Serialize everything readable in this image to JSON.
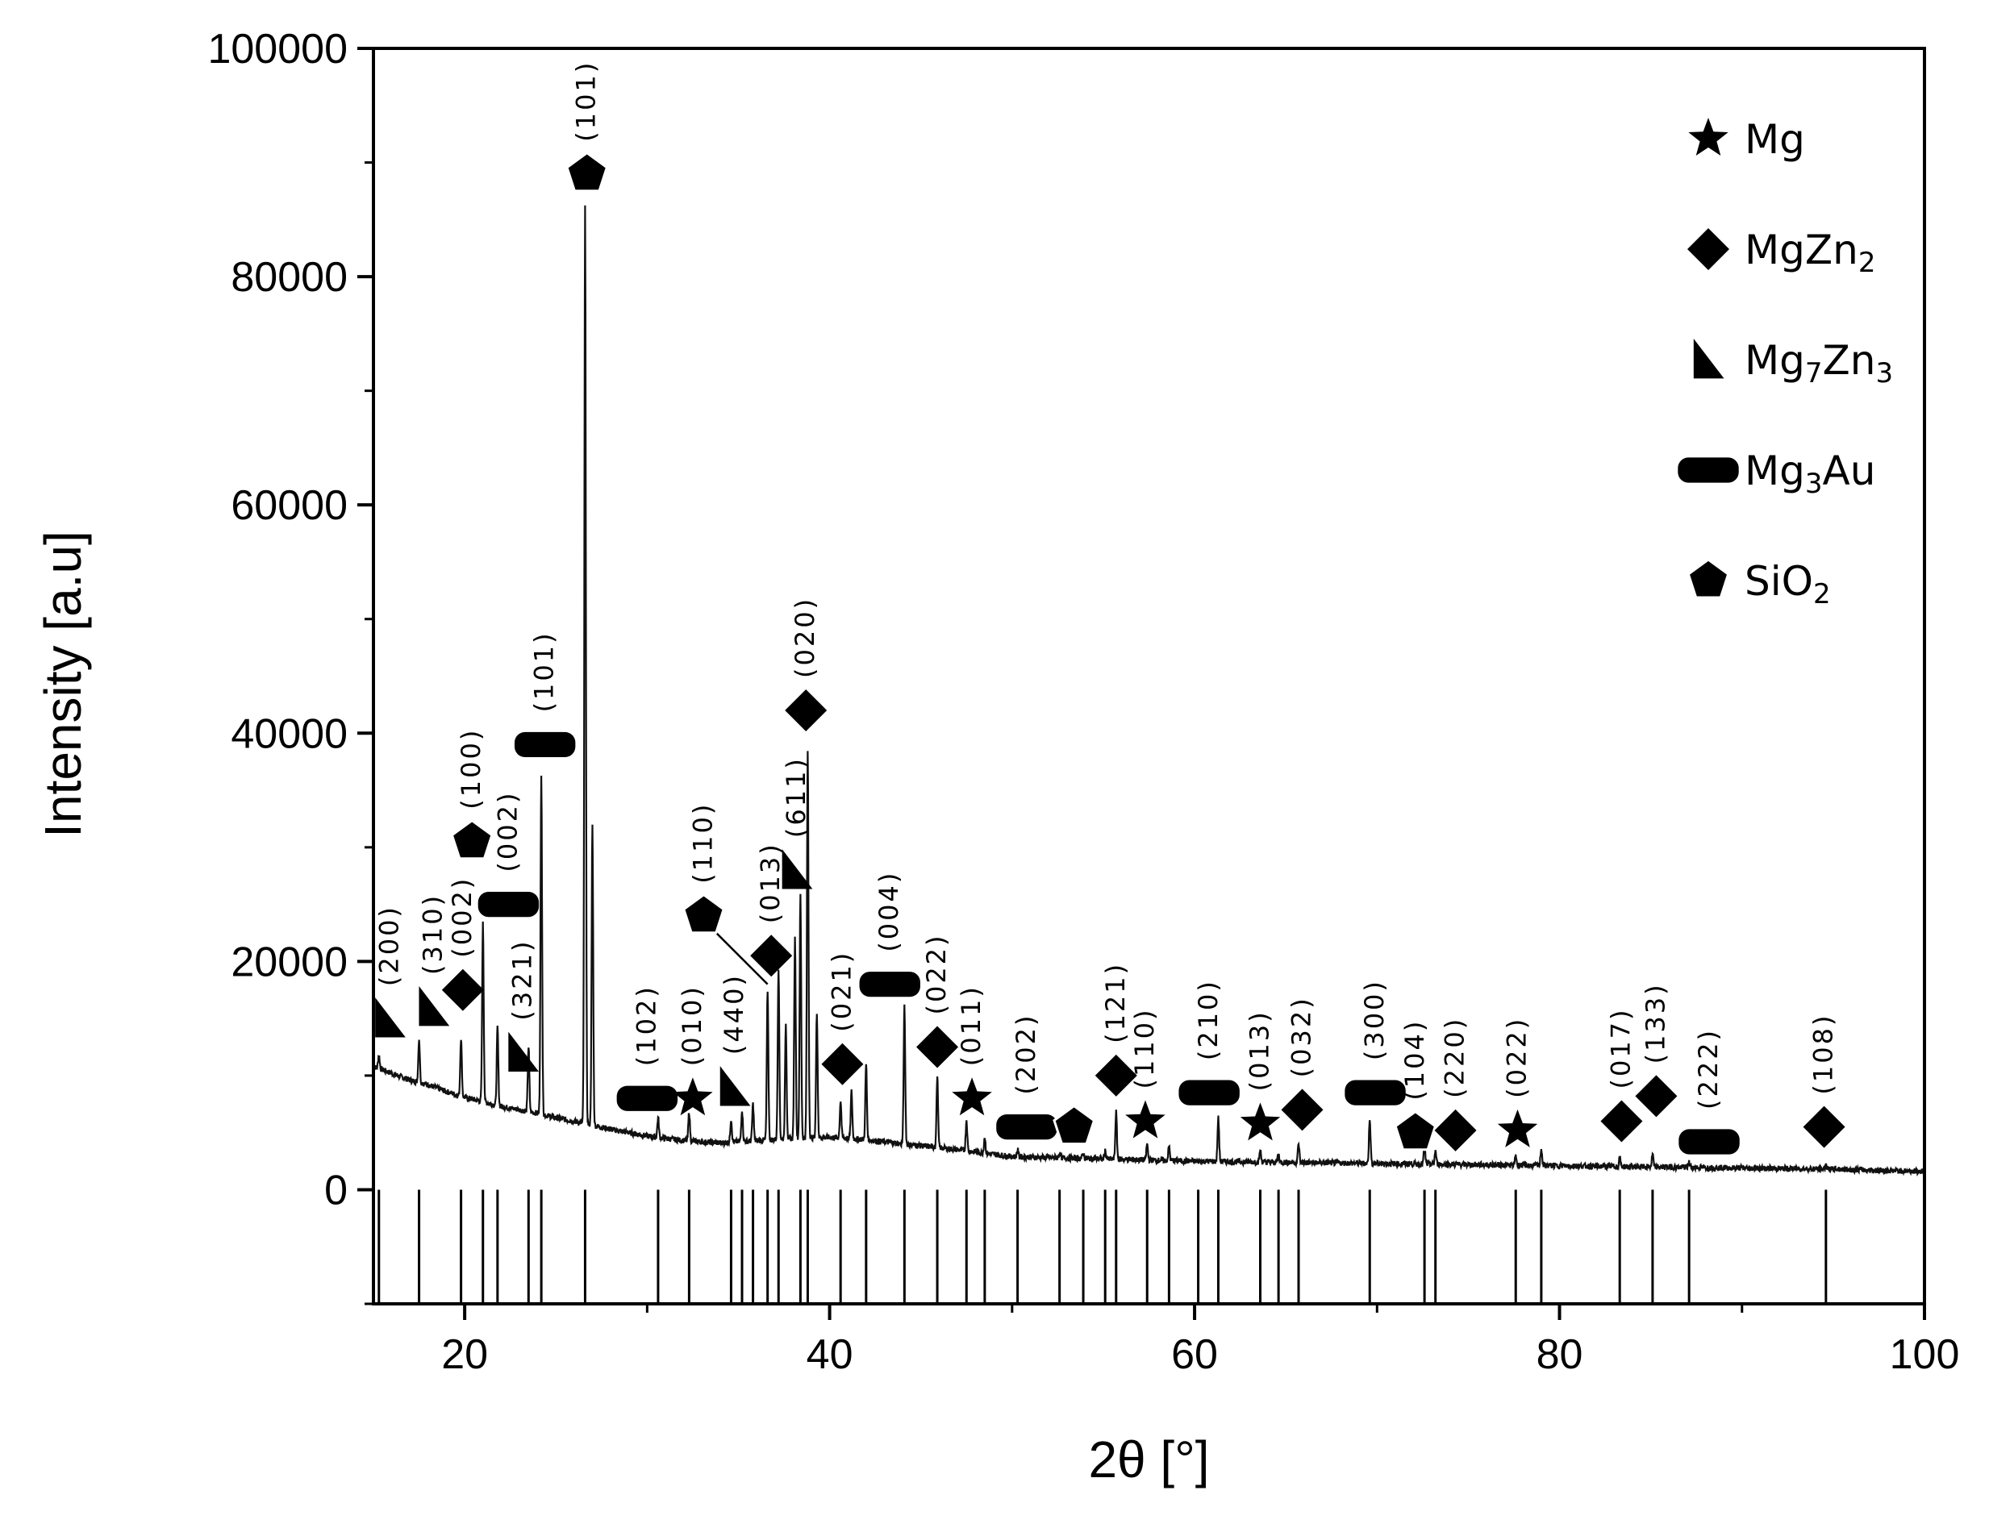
{
  "chart_data": {
    "type": "line",
    "xlabel": "2θ [°]",
    "ylabel": "Intensity [a.u]",
    "xlim": [
      15,
      100
    ],
    "ylim": [
      -10000,
      100000
    ],
    "x_ticks": [
      "20",
      "40",
      "60",
      "80",
      "100"
    ],
    "y_ticks": [
      "0",
      "20000",
      "40000",
      "60000",
      "80000",
      "100000"
    ],
    "grid": false,
    "legend_position": "top-right",
    "legend": [
      {
        "phase": "Mg",
        "base": "Mg",
        "sub": "",
        "tail": "",
        "marker": "star-icon"
      },
      {
        "phase": "MgZn2",
        "base": "MgZn",
        "sub": "2",
        "tail": "",
        "marker": "diamond-icon"
      },
      {
        "phase": "Mg7Zn3",
        "base": "Mg",
        "sub": "7",
        "tail": "Zn",
        "sub2": "3",
        "marker": "right-triangle-icon"
      },
      {
        "phase": "Mg3Au",
        "base": "Mg",
        "sub": "3",
        "tail": "Au",
        "marker": "rounded-rect-icon"
      },
      {
        "phase": "SiO2",
        "base": "SiO",
        "sub": "2",
        "tail": "",
        "marker": "pentagon-icon"
      }
    ],
    "pattern_profile": [
      [
        15.0,
        10800
      ],
      [
        16.0,
        10200
      ],
      [
        17.0,
        9600
      ],
      [
        18.0,
        9200
      ],
      [
        19.0,
        8600
      ],
      [
        20.0,
        8100
      ],
      [
        21.0,
        7700
      ],
      [
        22.0,
        7300
      ],
      [
        23.0,
        7000
      ],
      [
        24.0,
        6700
      ],
      [
        25.0,
        6300
      ],
      [
        26.0,
        6000
      ],
      [
        28.0,
        5300
      ],
      [
        30.0,
        4700
      ],
      [
        32.0,
        4300
      ],
      [
        34.0,
        4100
      ],
      [
        36.0,
        4300
      ],
      [
        38.0,
        4500
      ],
      [
        40.0,
        4600
      ],
      [
        42.0,
        4400
      ],
      [
        44.0,
        4000
      ],
      [
        46.0,
        3700
      ],
      [
        48.0,
        3300
      ],
      [
        50.0,
        2900
      ],
      [
        55.0,
        2700
      ],
      [
        60.0,
        2500
      ],
      [
        65.0,
        2400
      ],
      [
        70.0,
        2300
      ],
      [
        75.0,
        2200
      ],
      [
        80.0,
        2100
      ],
      [
        85.0,
        2000
      ],
      [
        90.0,
        1900
      ],
      [
        95.0,
        1800
      ],
      [
        100.0,
        1600
      ]
    ],
    "pattern_peaks": [
      [
        15.3,
        11800
      ],
      [
        17.5,
        13200
      ],
      [
        19.8,
        13300
      ],
      [
        21.0,
        23300
      ],
      [
        21.8,
        14200
      ],
      [
        23.5,
        12500
      ],
      [
        24.2,
        36200
      ],
      [
        26.6,
        86000
      ],
      [
        27.0,
        32000
      ],
      [
        30.6,
        6300
      ],
      [
        32.3,
        6800
      ],
      [
        34.6,
        6200
      ],
      [
        35.2,
        7000
      ],
      [
        35.8,
        7500
      ],
      [
        36.6,
        17500
      ],
      [
        37.2,
        19500
      ],
      [
        37.6,
        14500
      ],
      [
        38.1,
        22000
      ],
      [
        38.4,
        25800
      ],
      [
        38.8,
        38500
      ],
      [
        39.3,
        15500
      ],
      [
        40.6,
        7800
      ],
      [
        41.2,
        8600
      ],
      [
        42.0,
        11000
      ],
      [
        44.1,
        16000
      ],
      [
        45.9,
        9900
      ],
      [
        47.5,
        6100
      ],
      [
        48.5,
        4600
      ],
      [
        50.3,
        3500
      ],
      [
        52.6,
        3200
      ],
      [
        53.9,
        3200
      ],
      [
        55.1,
        3400
      ],
      [
        55.7,
        6800
      ],
      [
        57.4,
        4000
      ],
      [
        58.6,
        3800
      ],
      [
        61.3,
        6300
      ],
      [
        63.6,
        3400
      ],
      [
        64.6,
        3100
      ],
      [
        65.7,
        4000
      ],
      [
        69.6,
        6300
      ],
      [
        72.6,
        3800
      ],
      [
        73.2,
        3400
      ],
      [
        77.6,
        3000
      ],
      [
        79.0,
        3600
      ],
      [
        83.3,
        2800
      ],
      [
        85.1,
        3100
      ],
      [
        87.1,
        2400
      ],
      [
        94.6,
        2200
      ]
    ],
    "reference_lines_2theta": [
      15.3,
      17.5,
      19.8,
      21.0,
      21.8,
      23.5,
      24.2,
      26.6,
      30.6,
      32.3,
      34.6,
      35.2,
      35.8,
      36.6,
      37.2,
      38.4,
      38.8,
      40.6,
      42.0,
      44.1,
      45.9,
      47.5,
      48.5,
      50.3,
      52.6,
      53.9,
      55.1,
      55.7,
      57.4,
      58.6,
      60.2,
      61.3,
      63.6,
      64.6,
      65.7,
      69.6,
      72.6,
      73.2,
      77.6,
      79.0,
      83.3,
      85.1,
      87.1,
      94.6
    ],
    "peak_annotations": [
      {
        "two_theta": 15.9,
        "marker_y": 15000,
        "phase": "Mg7Zn3",
        "hkl": "(200)"
      },
      {
        "two_theta": 18.3,
        "marker_y": 16000,
        "phase": "Mg7Zn3",
        "hkl": "(310)"
      },
      {
        "two_theta": 19.9,
        "marker_y": 17500,
        "phase": "MgZn2",
        "hkl": "(002)"
      },
      {
        "two_theta": 20.4,
        "marker_y": 30500,
        "phase": "SiO2",
        "hkl": "(100)"
      },
      {
        "two_theta": 22.4,
        "marker_y": 25000,
        "phase": "Mg3Au",
        "hkl": "(002)"
      },
      {
        "two_theta": 23.2,
        "marker_y": 12000,
        "phase": "Mg7Zn3",
        "hkl": "(321)"
      },
      {
        "two_theta": 24.4,
        "marker_y": 39000,
        "phase": "Mg3Au",
        "hkl": "(101)"
      },
      {
        "two_theta": 26.7,
        "marker_y": 89000,
        "phase": "SiO2",
        "hkl": "(101)"
      },
      {
        "two_theta": 30.0,
        "marker_y": 8000,
        "phase": "Mg3Au",
        "hkl": "(102)"
      },
      {
        "two_theta": 32.5,
        "marker_y": 8000,
        "phase": "Mg",
        "hkl": "(010)"
      },
      {
        "two_theta": 34.8,
        "marker_y": 9000,
        "phase": "Mg7Zn3",
        "hkl": "(440)"
      },
      {
        "two_theta": 33.1,
        "marker_y": 24000,
        "phase": "SiO2",
        "hkl": "(110)"
      },
      {
        "two_theta": 36.8,
        "marker_y": 20500,
        "phase": "MgZn2",
        "hkl": "(013)"
      },
      {
        "two_theta": 38.2,
        "marker_y": 28000,
        "phase": "Mg7Zn3",
        "hkl": "(611)"
      },
      {
        "two_theta": 38.7,
        "marker_y": 42000,
        "phase": "MgZn2",
        "hkl": "(020)"
      },
      {
        "two_theta": 40.7,
        "marker_y": 11000,
        "phase": "MgZn2",
        "hkl": "(021)"
      },
      {
        "two_theta": 43.3,
        "marker_y": 18000,
        "phase": "Mg3Au",
        "hkl": "(004)"
      },
      {
        "two_theta": 45.9,
        "marker_y": 12500,
        "phase": "MgZn2",
        "hkl": "(022)"
      },
      {
        "two_theta": 47.8,
        "marker_y": 8000,
        "phase": "Mg",
        "hkl": "(011)"
      },
      {
        "two_theta": 50.8,
        "marker_y": 5500,
        "phase": "Mg3Au",
        "hkl": "(202)"
      },
      {
        "two_theta": 53.4,
        "marker_y": 5500,
        "phase": "SiO2",
        "hkl": ""
      },
      {
        "two_theta": 55.7,
        "marker_y": 10000,
        "phase": "MgZn2",
        "hkl": "(121)"
      },
      {
        "two_theta": 57.3,
        "marker_y": 6000,
        "phase": "Mg",
        "hkl": "(110)"
      },
      {
        "two_theta": 60.8,
        "marker_y": 8500,
        "phase": "Mg3Au",
        "hkl": "(210)"
      },
      {
        "two_theta": 63.6,
        "marker_y": 5800,
        "phase": "Mg",
        "hkl": "(013)"
      },
      {
        "two_theta": 65.9,
        "marker_y": 7000,
        "phase": "MgZn2",
        "hkl": "(032)"
      },
      {
        "two_theta": 69.9,
        "marker_y": 8500,
        "phase": "Mg3Au",
        "hkl": "(300)"
      },
      {
        "two_theta": 72.1,
        "marker_y": 5000,
        "phase": "SiO2",
        "hkl": "(104)"
      },
      {
        "two_theta": 74.3,
        "marker_y": 5200,
        "phase": "MgZn2",
        "hkl": "(220)"
      },
      {
        "two_theta": 77.7,
        "marker_y": 5200,
        "phase": "Mg",
        "hkl": "(022)"
      },
      {
        "two_theta": 83.4,
        "marker_y": 6000,
        "phase": "MgZn2",
        "hkl": "(017)"
      },
      {
        "two_theta": 85.3,
        "marker_y": 8200,
        "phase": "MgZn2",
        "hkl": "(133)"
      },
      {
        "two_theta": 88.2,
        "marker_y": 4200,
        "phase": "Mg3Au",
        "hkl": "(222)"
      },
      {
        "two_theta": 94.5,
        "marker_y": 5500,
        "phase": "MgZn2",
        "hkl": "(108)"
      }
    ],
    "leader_lines": [
      {
        "from_two_theta": 33.6,
        "from_y": 22800,
        "to_two_theta": 36.6,
        "to_y": 18000
      }
    ]
  }
}
